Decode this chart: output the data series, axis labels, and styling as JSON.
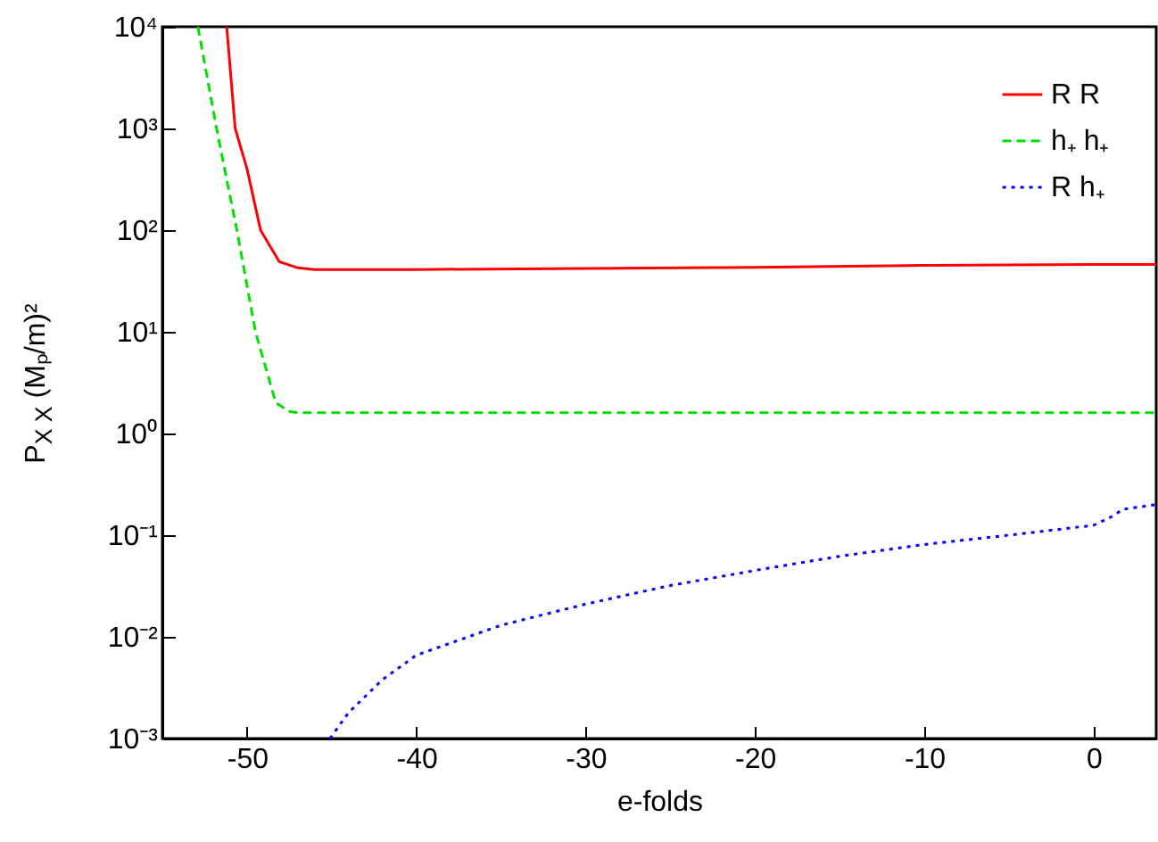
{
  "chart_data": {
    "type": "line",
    "xlabel": "e-folds",
    "ylabel": "P$_{X X}$  (Mₚ/m)²",
    "log": true,
    "legend": "top right",
    "grid": false,
    "xlim": [
      -55,
      3.7
    ],
    "xticks": [
      -50,
      -40,
      -30,
      -20,
      -10,
      0
    ],
    "ylim": [
      0.001,
      10000
    ],
    "yticks": [
      {
        "value": 0.001,
        "label": "10⁻³"
      },
      {
        "value": 0.01,
        "label": "10⁻²"
      },
      {
        "value": 0.1,
        "label": "10⁻¹"
      },
      {
        "value": 1,
        "label": "10⁰"
      },
      {
        "value": 10,
        "label": "10¹"
      },
      {
        "value": 100,
        "label": "10²"
      },
      {
        "value": 1000,
        "label": "10³"
      },
      {
        "value": 10000,
        "label": "10⁴"
      }
    ],
    "series": [
      {
        "name": "R R",
        "color": "#ff0000",
        "line_style": "solid",
        "x": [
          -51.2,
          -50.7,
          -50,
          -49.2,
          -48.1,
          -47,
          -46,
          -40,
          -30,
          -20,
          -10,
          0,
          3.7
        ],
        "values": [
          10000,
          1000,
          400,
          100,
          49,
          42.5,
          41,
          41,
          42,
          43,
          45,
          46,
          46
        ]
      },
      {
        "name": "h₊ h₊",
        "color": "#00e000",
        "line_style": "dashed",
        "x": [
          -52.9,
          -51.8,
          -50.6,
          -49.5,
          -48.3,
          -47.5,
          -47,
          -30,
          0,
          3.7
        ],
        "values": [
          10000,
          1000,
          100,
          10,
          2,
          1.65,
          1.6,
          1.6,
          1.6,
          1.6
        ]
      },
      {
        "name": "R h₊",
        "color": "#0000ff",
        "line_style": "dotted",
        "x": [
          -45.1,
          -44,
          -42,
          -40,
          -35,
          -30,
          -25,
          -20,
          -15,
          -10,
          -5,
          0,
          1,
          1.75,
          3.7
        ],
        "values": [
          0.001,
          0.0018,
          0.0038,
          0.0066,
          0.013,
          0.021,
          0.032,
          0.045,
          0.062,
          0.081,
          0.1,
          0.125,
          0.15,
          0.18,
          0.2
        ]
      }
    ]
  }
}
